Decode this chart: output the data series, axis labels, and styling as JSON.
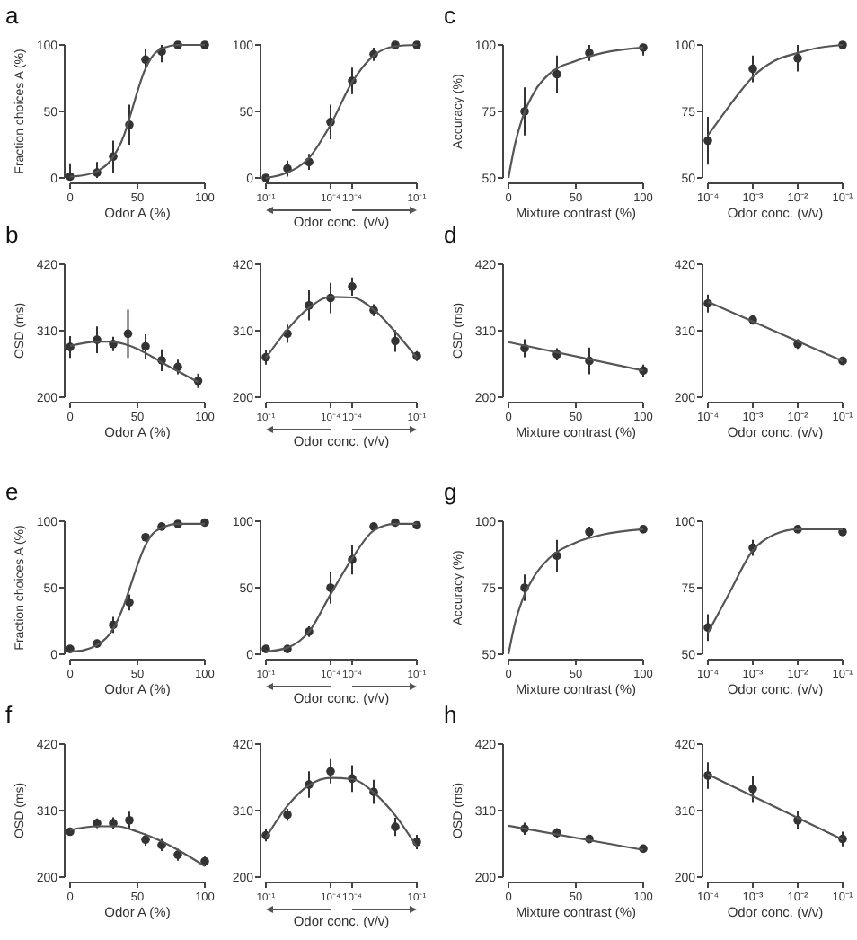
{
  "chart_data": [
    {
      "type": "scatter",
      "title": "a",
      "xlabel": "Odor A (%)",
      "ylabel": "Fraction choices A (%)",
      "xlim": [
        0,
        100
      ],
      "xticks": [
        0,
        50,
        100
      ],
      "ylim": [
        0,
        100
      ],
      "yticks": [
        0,
        50,
        100
      ],
      "marker": "circle",
      "x": [
        0,
        20,
        32,
        44,
        56,
        68,
        80,
        100
      ],
      "series": [
        {
          "color": "#333333",
          "values": [
            1,
            4,
            16,
            40,
            89,
            95,
            100,
            100
          ],
          "errors": [
            [
              0,
              11
            ],
            [
              0,
              12
            ],
            12,
            15,
            8,
            [
              87,
              100
            ],
            null,
            null
          ]
        },
        {
          "type": "line",
          "marker": "none",
          "color": "#555555",
          "x": [
            0,
            10,
            20,
            30,
            40,
            45,
            50,
            55,
            60,
            70,
            80,
            100
          ],
          "values": [
            1,
            2,
            5,
            13,
            32,
            48,
            65,
            80,
            90,
            98,
            100,
            100
          ]
        }
      ]
    },
    {
      "type": "scatter",
      "xlabel": "Odor conc. (v/v)",
      "categories": [
        "10⁻¹",
        null,
        null,
        "10⁻⁴",
        "10⁻⁴",
        null,
        null,
        "10⁻¹"
      ],
      "ylim": [
        0,
        100
      ],
      "yticks": [
        0,
        50,
        100
      ],
      "marker": "circle",
      "series": [
        {
          "color": "#333333",
          "values": [
            0,
            7,
            12,
            42,
            73,
            93,
            100,
            100
          ],
          "errors": [
            null,
            6,
            6,
            13,
            10,
            5,
            null,
            null
          ]
        },
        {
          "type": "line",
          "marker": "none",
          "color": "#555555",
          "values": [
            0,
            4,
            15,
            40,
            72,
            92,
            99,
            100
          ]
        }
      ]
    },
    {
      "type": "scatter",
      "title": "c",
      "xlabel": "Mixture contrast (%)",
      "ylabel": "Accuracy (%)",
      "xlim": [
        0,
        100
      ],
      "xticks": [
        0,
        50,
        100
      ],
      "ylim": [
        50,
        100
      ],
      "yticks": [
        50,
        75,
        100
      ],
      "marker": "circle",
      "x": [
        12,
        36,
        60,
        100
      ],
      "series": [
        {
          "color": "#333333",
          "values": [
            75,
            89,
            97,
            99
          ],
          "errors": [
            9,
            7,
            3,
            [
              96,
              100
            ]
          ]
        },
        {
          "type": "line",
          "marker": "none",
          "color": "#555555",
          "x": [
            0,
            5,
            10,
            20,
            30,
            50,
            70,
            100
          ],
          "values": [
            50,
            63,
            72,
            83,
            89,
            94,
            97,
            99
          ]
        }
      ]
    },
    {
      "type": "scatter",
      "xlabel": "Odor conc. (v/v)",
      "log": "x",
      "xlim": [
        0.0001,
        0.1
      ],
      "xticks": [
        {
          "value": 0.0001,
          "label": "10⁻⁴"
        },
        {
          "value": 0.001,
          "label": "10⁻³"
        },
        {
          "value": 0.01,
          "label": "10⁻²"
        },
        {
          "value": 0.1,
          "label": "10⁻¹"
        }
      ],
      "ylim": [
        50,
        100
      ],
      "yticks": [
        50,
        75,
        100
      ],
      "marker": "circle",
      "x": [
        0.0001,
        0.001,
        0.01,
        0.1
      ],
      "series": [
        {
          "color": "#333333",
          "values": [
            64,
            91,
            95,
            100
          ],
          "errors": [
            9,
            5,
            5,
            null
          ]
        },
        {
          "type": "line",
          "marker": "none",
          "color": "#555555",
          "x": [
            0.0001,
            0.0002,
            0.0005,
            0.001,
            0.003,
            0.01,
            0.03,
            0.1
          ],
          "values": [
            66,
            73,
            82,
            88,
            94,
            97,
            99,
            100
          ]
        }
      ]
    },
    {
      "type": "scatter",
      "title": "b",
      "xlabel": "Odor A (%)",
      "ylabel": "OSD (ms)",
      "xlim": [
        0,
        100
      ],
      "xticks": [
        0,
        50,
        100
      ],
      "ylim": [
        200,
        420
      ],
      "yticks": [
        200,
        310,
        420
      ],
      "marker": "circle",
      "x": [
        0,
        20,
        32,
        43,
        56,
        68,
        80,
        95
      ],
      "series": [
        {
          "color": "#333333",
          "values": [
            283,
            295,
            288,
            305,
            284,
            261,
            250,
            227
          ],
          "errors": [
            18,
            22,
            12,
            40,
            20,
            18,
            12,
            12
          ]
        },
        {
          "type": "line",
          "marker": "none",
          "color": "#555555",
          "x": [
            0,
            20,
            30,
            40,
            50,
            60,
            70,
            80,
            95
          ],
          "values": [
            285,
            292,
            292,
            288,
            280,
            268,
            255,
            243,
            225
          ]
        }
      ]
    },
    {
      "type": "scatter",
      "xlabel": "Odor conc. (v/v)",
      "categories": [
        "10⁻¹",
        null,
        null,
        "10⁻⁴",
        "10⁻⁴",
        null,
        null,
        "10⁻¹"
      ],
      "ylim": [
        200,
        420
      ],
      "yticks": [
        200,
        310,
        420
      ],
      "marker": "circle",
      "series": [
        {
          "color": "#333333",
          "values": [
            266,
            305,
            352,
            364,
            383,
            344,
            293,
            268
          ],
          "errors": [
            12,
            15,
            25,
            25,
            15,
            10,
            18,
            8
          ]
        },
        {
          "type": "line",
          "marker": "none",
          "color": "#555555",
          "values": [
            265,
            312,
            348,
            366,
            365,
            345,
            308,
            265
          ]
        }
      ]
    },
    {
      "type": "scatter",
      "title": "d",
      "xlabel": "Mixture contrast (%)",
      "ylabel": "OSD (ms)",
      "xlim": [
        0,
        100
      ],
      "xticks": [
        0,
        50,
        100
      ],
      "ylim": [
        200,
        420
      ],
      "yticks": [
        200,
        310,
        420
      ],
      "marker": "circle",
      "x": [
        12,
        36,
        60,
        100
      ],
      "series": [
        {
          "color": "#333333",
          "values": [
            281,
            271,
            260,
            244
          ],
          "errors": [
            15,
            10,
            22,
            10
          ]
        },
        {
          "type": "line",
          "marker": "none",
          "color": "#555555",
          "x": [
            0,
            100
          ],
          "values": [
            291,
            244
          ]
        }
      ]
    },
    {
      "type": "scatter",
      "xlabel": "Odor conc. (v/v)",
      "log": "x",
      "xlim": [
        0.0001,
        0.1
      ],
      "xticks": [
        {
          "value": 0.0001,
          "label": "10⁻⁴"
        },
        {
          "value": 0.001,
          "label": "10⁻³"
        },
        {
          "value": 0.01,
          "label": "10⁻²"
        },
        {
          "value": 0.1,
          "label": "10⁻¹"
        }
      ],
      "ylim": [
        200,
        420
      ],
      "yticks": [
        200,
        310,
        420
      ],
      "marker": "circle",
      "x": [
        0.0001,
        0.001,
        0.01,
        0.1
      ],
      "series": [
        {
          "color": "#333333",
          "values": [
            355,
            328,
            288,
            260
          ],
          "errors": [
            15,
            8,
            8,
            5
          ]
        },
        {
          "type": "line",
          "marker": "none",
          "color": "#555555",
          "x": [
            0.0001,
            0.1
          ],
          "values": [
            358,
            260
          ]
        }
      ]
    },
    {
      "type": "scatter",
      "title": "e",
      "xlabel": "Odor A (%)",
      "ylabel": "Fraction choices A (%)",
      "xlim": [
        0,
        100
      ],
      "xticks": [
        0,
        50,
        100
      ],
      "ylim": [
        0,
        100
      ],
      "yticks": [
        0,
        50,
        100
      ],
      "marker": "circle",
      "x": [
        0,
        20,
        32,
        44,
        56,
        68,
        80,
        100
      ],
      "series": [
        {
          "color": "#333333",
          "values": [
            4,
            8,
            22,
            39,
            88,
            96,
            98,
            99
          ],
          "errors": [
            2,
            3,
            6,
            6,
            3,
            null,
            null,
            null
          ]
        },
        {
          "type": "line",
          "marker": "none",
          "color": "#555555",
          "x": [
            0,
            10,
            20,
            30,
            40,
            45,
            50,
            55,
            60,
            70,
            80,
            100
          ],
          "values": [
            2,
            3,
            7,
            16,
            37,
            52,
            67,
            80,
            89,
            96,
            98,
            98
          ]
        }
      ]
    },
    {
      "type": "scatter",
      "xlabel": "Odor conc. (v/v)",
      "categories": [
        "10⁻¹",
        null,
        null,
        "10⁻⁴",
        "10⁻⁴",
        null,
        null,
        "10⁻¹"
      ],
      "ylim": [
        0,
        100
      ],
      "yticks": [
        0,
        50,
        100
      ],
      "marker": "circle",
      "series": [
        {
          "color": "#333333",
          "values": [
            4,
            4,
            17,
            50,
            71,
            96,
            99,
            97
          ],
          "errors": [
            null,
            null,
            4,
            12,
            11,
            null,
            null,
            null
          ]
        },
        {
          "type": "line",
          "marker": "none",
          "color": "#555555",
          "values": [
            2,
            5,
            17,
            45,
            72,
            93,
            98,
            98
          ]
        }
      ]
    },
    {
      "type": "scatter",
      "title": "g",
      "xlabel": "Mixture contrast (%)",
      "ylabel": "Accuracy (%)",
      "xlim": [
        0,
        100
      ],
      "xticks": [
        0,
        50,
        100
      ],
      "ylim": [
        50,
        100
      ],
      "yticks": [
        50,
        75,
        100
      ],
      "marker": "circle",
      "x": [
        12,
        36,
        60,
        100
      ],
      "series": [
        {
          "color": "#333333",
          "values": [
            75,
            87,
            96,
            97
          ],
          "errors": [
            5,
            6,
            2,
            null
          ]
        },
        {
          "type": "line",
          "marker": "none",
          "color": "#555555",
          "x": [
            0,
            5,
            10,
            20,
            30,
            50,
            70,
            100
          ],
          "values": [
            50,
            62,
            70,
            80,
            86,
            92,
            95,
            97
          ]
        }
      ]
    },
    {
      "type": "scatter",
      "xlabel": "Odor conc. (v/v)",
      "log": "x",
      "xlim": [
        0.0001,
        0.1
      ],
      "xticks": [
        {
          "value": 0.0001,
          "label": "10⁻⁴"
        },
        {
          "value": 0.001,
          "label": "10⁻³"
        },
        {
          "value": 0.01,
          "label": "10⁻²"
        },
        {
          "value": 0.1,
          "label": "10⁻¹"
        }
      ],
      "ylim": [
        50,
        100
      ],
      "yticks": [
        50,
        75,
        100
      ],
      "marker": "circle",
      "x": [
        0.0001,
        0.001,
        0.01,
        0.1
      ],
      "series": [
        {
          "color": "#333333",
          "values": [
            60,
            90,
            97,
            96
          ],
          "errors": [
            5,
            3,
            null,
            null
          ]
        },
        {
          "type": "line",
          "marker": "none",
          "color": "#555555",
          "x": [
            0.0001,
            0.0003,
            0.001,
            0.003,
            0.01,
            0.1
          ],
          "values": [
            58,
            73,
            89,
            95,
            97,
            97
          ]
        }
      ]
    },
    {
      "type": "scatter",
      "title": "f",
      "xlabel": "Odor A (%)",
      "ylabel": "OSD (ms)",
      "xlim": [
        0,
        100
      ],
      "xticks": [
        0,
        50,
        100
      ],
      "ylim": [
        200,
        420
      ],
      "yticks": [
        200,
        310,
        420
      ],
      "marker": "circle",
      "x": [
        0,
        20,
        32,
        44,
        56,
        68,
        80,
        100
      ],
      "series": [
        {
          "color": "#333333",
          "values": [
            275,
            289,
            289,
            294,
            262,
            253,
            237,
            226
          ],
          "errors": [
            null,
            8,
            10,
            14,
            10,
            10,
            10,
            8
          ]
        },
        {
          "type": "line",
          "marker": "none",
          "color": "#555555",
          "x": [
            0,
            20,
            35,
            50,
            65,
            80,
            100
          ],
          "values": [
            278,
            284,
            284,
            275,
            262,
            245,
            218
          ]
        }
      ]
    },
    {
      "type": "scatter",
      "xlabel": "Odor conc. (v/v)",
      "categories": [
        "10⁻¹",
        null,
        null,
        "10⁻⁴",
        "10⁻⁴",
        null,
        null,
        "10⁻¹"
      ],
      "ylim": [
        200,
        420
      ],
      "yticks": [
        200,
        310,
        420
      ],
      "marker": "circle",
      "series": [
        {
          "color": "#333333",
          "values": [
            269,
            303,
            353,
            375,
            363,
            341,
            283,
            258
          ],
          "errors": [
            10,
            10,
            22,
            20,
            22,
            20,
            15,
            12
          ]
        },
        {
          "type": "line",
          "marker": "none",
          "color": "#555555",
          "values": [
            265,
            318,
            352,
            364,
            362,
            340,
            302,
            250
          ]
        }
      ]
    },
    {
      "type": "scatter",
      "title": "h",
      "xlabel": "Mixture contrast (%)",
      "ylabel": "OSD (ms)",
      "xlim": [
        0,
        100
      ],
      "xticks": [
        0,
        50,
        100
      ],
      "ylim": [
        200,
        420
      ],
      "yticks": [
        200,
        310,
        420
      ],
      "marker": "circle",
      "x": [
        12,
        36,
        60,
        100
      ],
      "series": [
        {
          "color": "#333333",
          "values": [
            280,
            273,
            263,
            247
          ],
          "errors": [
            10,
            8,
            5,
            null
          ]
        },
        {
          "type": "line",
          "marker": "none",
          "color": "#555555",
          "x": [
            0,
            100
          ],
          "values": [
            285,
            245
          ]
        }
      ]
    },
    {
      "type": "scatter",
      "xlabel": "Odor conc. (v/v)",
      "log": "x",
      "xlim": [
        0.0001,
        0.1
      ],
      "xticks": [
        {
          "value": 0.0001,
          "label": "10⁻⁴"
        },
        {
          "value": 0.001,
          "label": "10⁻³"
        },
        {
          "value": 0.01,
          "label": "10⁻²"
        },
        {
          "value": 0.1,
          "label": "10⁻¹"
        }
      ],
      "ylim": [
        200,
        420
      ],
      "yticks": [
        200,
        310,
        420
      ],
      "marker": "circle",
      "x": [
        0.0001,
        0.001,
        0.01,
        0.1
      ],
      "series": [
        {
          "color": "#333333",
          "values": [
            368,
            346,
            294,
            263
          ],
          "errors": [
            22,
            22,
            15,
            12
          ]
        },
        {
          "type": "line",
          "marker": "none",
          "color": "#555555",
          "x": [
            0.0001,
            0.1
          ],
          "values": [
            370,
            262
          ]
        }
      ]
    }
  ]
}
